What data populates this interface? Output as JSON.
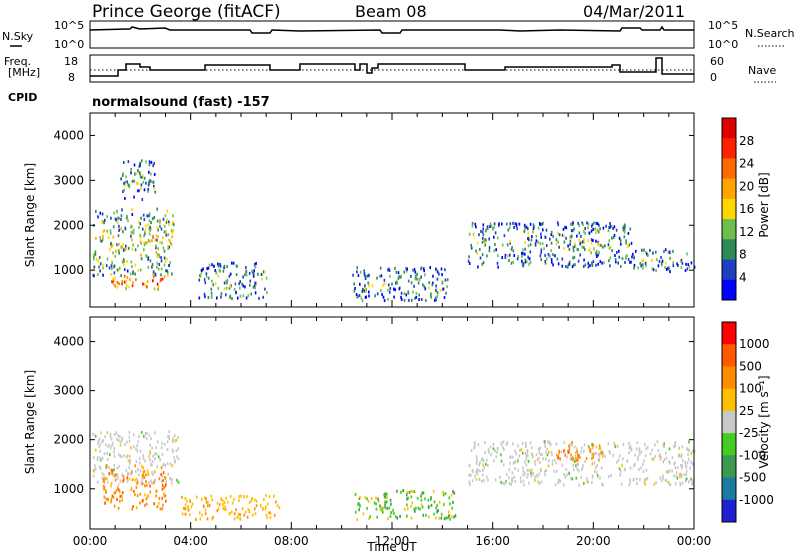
{
  "header": {
    "station": "Prince George (fitACF)",
    "beam": "Beam 08",
    "date": "04/Mar/2011"
  },
  "panels": {
    "nsky": {
      "label": "N.Sky",
      "ticks": [
        "10^5",
        "10^0"
      ]
    },
    "nsearch": {
      "label": "N.Search",
      "ticks": [
        "10^5",
        "10^0"
      ]
    },
    "freq": {
      "label_line1": "Freq.",
      "label_line2": "[MHz]",
      "ticks": [
        "18",
        "8"
      ]
    },
    "nave": {
      "label": "Nave",
      "ticks": [
        "60",
        "0"
      ]
    },
    "cpid": {
      "label": "CPID",
      "text": "normalsound (fast) -157"
    }
  },
  "colors": {
    "power": [
      "#0000ff",
      "#1e3fbf",
      "#2e8b57",
      "#6fbf4f",
      "#ffd700",
      "#ffa500",
      "#ff6a00",
      "#ff2000",
      "#e00000"
    ],
    "velocity": [
      "#2020d0",
      "#1c7aa0",
      "#3c9a50",
      "#44cc22",
      "#c8c8c8",
      "#ffbf00",
      "#ff8c00",
      "#ff5a00",
      "#ff0000"
    ]
  },
  "chart_data": [
    {
      "type": "heatmap",
      "name": "power",
      "ylabel": "Slant Range [km]",
      "ylim": [
        180,
        4500
      ],
      "yticks": [
        "4000",
        "3000",
        "2000",
        "1000"
      ],
      "xlim": [
        "00:00",
        "24:00"
      ],
      "colorbar": {
        "label": "Power [dB]",
        "ticks": [
          "28",
          "24",
          "20",
          "16",
          "12",
          "8",
          "4"
        ],
        "range": [
          0,
          30
        ]
      },
      "scatter_regions": [
        {
          "t_hours": [
            0.1,
            3.3
          ],
          "range_km": [
            900,
            2400
          ],
          "level_db": "8-28"
        },
        {
          "t_hours": [
            0.8,
            3.0
          ],
          "range_km": [
            600,
            900
          ],
          "level_db": "20-28"
        },
        {
          "t_hours": [
            1.2,
            2.6
          ],
          "range_km": [
            2600,
            3500
          ],
          "level_db": "4-12"
        },
        {
          "t_hours": [
            4.3,
            7.0
          ],
          "range_km": [
            400,
            1200
          ],
          "level_db": "8-24"
        },
        {
          "t_hours": [
            10.4,
            14.2
          ],
          "range_km": [
            350,
            1100
          ],
          "level_db": "8-20"
        },
        {
          "t_hours": [
            15.0,
            21.5
          ],
          "range_km": [
            1100,
            2100
          ],
          "level_db": "4-20"
        },
        {
          "t_hours": [
            21.5,
            24.0
          ],
          "range_km": [
            1000,
            1500
          ],
          "level_db": "4-16"
        }
      ]
    },
    {
      "type": "heatmap",
      "name": "velocity",
      "ylabel": "Slant Range [km]",
      "xlabel": "Time UT",
      "ylim": [
        180,
        4500
      ],
      "yticks": [
        "4000",
        "3000",
        "2000",
        "1000"
      ],
      "xticks": [
        "00:00",
        "04:00",
        "08:00",
        "12:00",
        "16:00",
        "20:00",
        "00:00"
      ],
      "colorbar": {
        "label": "Velocity [m s⁻¹]",
        "ticks": [
          "1000",
          "500",
          "100",
          "25",
          "-25",
          "-100",
          "-500",
          "-1000"
        ]
      },
      "scatter_regions": [
        {
          "t_hours": [
            0.1,
            3.5
          ],
          "range_km": [
            1100,
            2200
          ],
          "velocity": "ground scatter (-25 to 25)"
        },
        {
          "t_hours": [
            0.5,
            3.0
          ],
          "range_km": [
            600,
            1500
          ],
          "velocity": "-100 to -500"
        },
        {
          "t_hours": [
            3.5,
            7.5
          ],
          "range_km": [
            400,
            900
          ],
          "velocity": "-100"
        },
        {
          "t_hours": [
            10.5,
            14.5
          ],
          "range_km": [
            400,
            1000
          ],
          "velocity": "25 to 500"
        },
        {
          "t_hours": [
            15.0,
            24.0
          ],
          "range_km": [
            1100,
            2000
          ],
          "velocity": "ground scatter (-25 to 25)"
        },
        {
          "t_hours": [
            18.5,
            20.5
          ],
          "range_km": [
            1600,
            2000
          ],
          "velocity": "-100 to -500"
        }
      ]
    }
  ],
  "bottom": {
    "xlabel": "Time UT"
  }
}
